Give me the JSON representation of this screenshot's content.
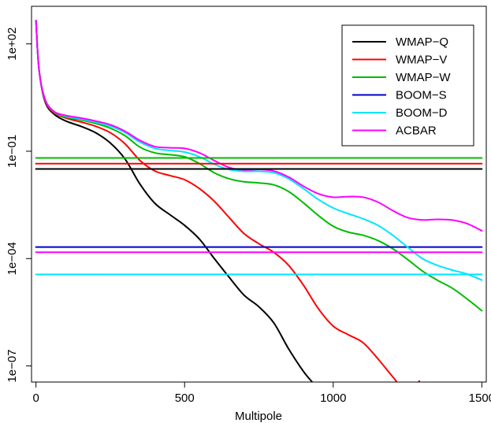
{
  "chart_data": {
    "type": "line",
    "title": "",
    "xlabel": "Multipole",
    "ylabel": "",
    "xlim": [
      -15,
      1515
    ],
    "ylim_log10": [
      -7.45,
      3.05
    ],
    "y_scale": "log",
    "grid": false,
    "legend_position": "top-right",
    "x_ticks": [
      0,
      500,
      1000,
      1500
    ],
    "x_tick_labels": [
      "0",
      "500",
      "1000",
      "1500"
    ],
    "y_ticks": [
      100,
      0.1,
      0.0001,
      1e-07
    ],
    "y_tick_labels": [
      "1e+02",
      "1e−01",
      "1e−04",
      "1e−07"
    ],
    "series": [
      {
        "name": "WMAP−Q",
        "color": "#000000",
        "x": [
          0,
          10,
          30,
          60,
          100,
          150,
          200,
          250,
          300,
          350,
          400,
          450,
          500,
          550,
          600,
          650,
          700,
          750,
          800,
          850,
          900,
          930
        ],
        "y": [
          450,
          20,
          2.5,
          1.1,
          0.7,
          0.5,
          0.33,
          0.17,
          0.06,
          0.012,
          0.0035,
          0.0017,
          0.00085,
          0.00035,
          0.0001,
          3e-05,
          9.5e-06,
          4.5e-06,
          1.6e-06,
          3e-07,
          7e-08,
          3.5e-08
        ]
      },
      {
        "name": "WMAP−V",
        "color": "#ff0000",
        "x": [
          0,
          10,
          30,
          60,
          100,
          150,
          200,
          250,
          300,
          350,
          400,
          450,
          500,
          550,
          600,
          650,
          700,
          750,
          800,
          850,
          900,
          950,
          1000,
          1050,
          1100,
          1150,
          1200,
          1250,
          1290
        ],
        "y": [
          450,
          20,
          2.7,
          1.2,
          0.85,
          0.66,
          0.5,
          0.33,
          0.16,
          0.055,
          0.028,
          0.021,
          0.016,
          0.009,
          0.004,
          0.0014,
          0.0005,
          0.00026,
          0.00015,
          6.5e-05,
          1.8e-05,
          4e-06,
          1.3e-06,
          7.5e-07,
          4.5e-07,
          1.6e-07,
          5e-08,
          1.8e-08,
          3.8e-08
        ]
      },
      {
        "name": "WMAP−W",
        "color": "#00bb00",
        "x": [
          0,
          10,
          30,
          60,
          100,
          150,
          200,
          250,
          300,
          350,
          400,
          450,
          500,
          550,
          600,
          650,
          700,
          750,
          800,
          850,
          900,
          950,
          1000,
          1050,
          1100,
          1150,
          1200,
          1250,
          1300,
          1350,
          1400,
          1450,
          1500
        ],
        "y": [
          450,
          20,
          2.8,
          1.25,
          0.9,
          0.75,
          0.6,
          0.44,
          0.27,
          0.13,
          0.09,
          0.08,
          0.07,
          0.045,
          0.025,
          0.017,
          0.014,
          0.013,
          0.0115,
          0.0075,
          0.0036,
          0.0016,
          0.0008,
          0.00055,
          0.00045,
          0.00032,
          0.00019,
          9.5e-05,
          4.5e-05,
          2.5e-05,
          1.5e-05,
          7.5e-06,
          3.5e-06
        ]
      },
      {
        "name": "BOOM−S",
        "color": "#0000cc",
        "x": [
          0,
          1500
        ],
        "y": [
          0.00021,
          0.00021
        ]
      },
      {
        "name": "BOOM−D",
        "color": "#00e5ff",
        "x": [
          0,
          10,
          30,
          60,
          100,
          150,
          200,
          250,
          300,
          350,
          400,
          450,
          500,
          550,
          600,
          650,
          700,
          750,
          800,
          850,
          900,
          950,
          1000,
          1050,
          1100,
          1150,
          1200,
          1250,
          1300,
          1350,
          1400,
          1450,
          1500
        ],
        "y": [
          450,
          20,
          2.9,
          1.3,
          0.95,
          0.8,
          0.65,
          0.5,
          0.33,
          0.18,
          0.12,
          0.105,
          0.095,
          0.07,
          0.043,
          0.031,
          0.0275,
          0.0275,
          0.025,
          0.017,
          0.009,
          0.0045,
          0.0026,
          0.0018,
          0.0013,
          0.00085,
          0.00045,
          0.00021,
          0.0001,
          6.5e-05,
          4.8e-05,
          3.7e-05,
          2.5e-05
        ]
      },
      {
        "name": "ACBAR",
        "color": "#ff00ff",
        "x": [
          0,
          10,
          30,
          60,
          100,
          150,
          200,
          250,
          300,
          350,
          400,
          450,
          500,
          550,
          600,
          650,
          700,
          750,
          800,
          850,
          900,
          950,
          1000,
          1050,
          1100,
          1150,
          1200,
          1250,
          1300,
          1350,
          1400,
          1450,
          1500
        ],
        "y": [
          450,
          20,
          2.9,
          1.3,
          1.0,
          0.85,
          0.7,
          0.55,
          0.36,
          0.2,
          0.135,
          0.125,
          0.12,
          0.09,
          0.055,
          0.035,
          0.03,
          0.031,
          0.028,
          0.019,
          0.0105,
          0.0065,
          0.0052,
          0.0054,
          0.0052,
          0.0038,
          0.0022,
          0.0014,
          0.0012,
          0.00125,
          0.0012,
          0.00095,
          0.0006
        ]
      },
      {
        "name": "",
        "color": "#00bb00",
        "x": [
          0,
          1500
        ],
        "y": [
          0.065,
          0.065
        ]
      },
      {
        "name": "",
        "color": "#ff0000",
        "x": [
          0,
          1500
        ],
        "y": [
          0.045,
          0.045
        ]
      },
      {
        "name": "",
        "color": "#000000",
        "x": [
          0,
          1500
        ],
        "y": [
          0.032,
          0.032
        ]
      },
      {
        "name": "",
        "color": "#ff00ff",
        "x": [
          0,
          1500
        ],
        "y": [
          0.00015,
          0.00015
        ]
      },
      {
        "name": "",
        "color": "#00e5ff",
        "x": [
          0,
          1500
        ],
        "y": [
          3.6e-05,
          3.6e-05
        ]
      }
    ]
  }
}
